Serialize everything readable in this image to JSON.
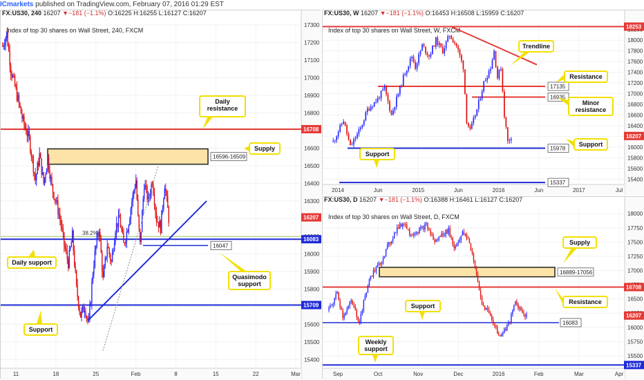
{
  "header": {
    "brand": "ICmarkets",
    "text": " published on TradingView.com, February 07, 2016 01:29 EST"
  },
  "colors": {
    "bull": "#2a2aff",
    "bear": "#e01010",
    "resistance": "#e53935",
    "support": "#1e2bd6",
    "zone_fill": "#fde3a7",
    "callout": "#f2e000",
    "price_tag": "#e53935",
    "fib": "#9ccc65"
  },
  "panels": [
    {
      "id": "h4",
      "ohlc": {
        "symbol": "FX:US30, 240",
        "price": "16207",
        "chg": "▼−181 (−1.1%)",
        "o": "O:16225",
        "h": "H:16255",
        "l": "L:16127",
        "c": "C:16207"
      },
      "title": "Index of top 30 shares on Wall Street, 240, FXCM",
      "y_ticks": [
        "17300",
        "17200",
        "17100",
        "17000",
        "16900",
        "16800",
        "16700",
        "16600",
        "16500",
        "16400",
        "16300",
        "16200",
        "16100",
        "16000",
        "15900",
        "15800",
        "15700",
        "15600",
        "15500",
        "15400"
      ],
      "x_ticks": [
        "11",
        "18",
        "25",
        "Feb",
        "8",
        "15",
        "22",
        "Mar"
      ],
      "price_labels": [
        "16708",
        "16207",
        "16083",
        "15709"
      ],
      "box_label": "16596-16509",
      "line_label": "16047",
      "fib_label": "38.2%",
      "callouts": [
        "Daily resistance",
        "Supply",
        "Daily support",
        "Quasimodo support",
        "Support"
      ]
    },
    {
      "id": "w",
      "ohlc": {
        "symbol": "FX:US30, W",
        "price": "16207",
        "chg": "▼−181 (−1.1%)",
        "o": "O:16453",
        "h": "H:16508",
        "l": "L:15959",
        "c": "C:16207"
      },
      "title": "Index of top 30 shares on Wall Street, W, FXCM",
      "y_ticks": [
        "18200",
        "18000",
        "17800",
        "17600",
        "17400",
        "17200",
        "17000",
        "16800",
        "16600",
        "16400",
        "16200",
        "16000",
        "15800",
        "15600",
        "15400"
      ],
      "x_ticks": [
        "2014",
        "Jun",
        "2015",
        "Jun",
        "2016",
        "Jun",
        "2017",
        "Jul"
      ],
      "price_labels": [
        "18253",
        "16207"
      ],
      "level_labels": [
        "17135",
        "16935",
        "15978",
        "15337"
      ],
      "callouts": [
        "Trendline",
        "Resistance",
        "Minor resistance",
        "Support",
        "Support"
      ]
    },
    {
      "id": "d",
      "ohlc": {
        "symbol": "FX:US30, D",
        "price": "16207",
        "chg": "▼−181 (−1.1%)",
        "o": "O:16388",
        "h": "H:16461",
        "l": "L:16127",
        "c": "C:16207"
      },
      "title": "Index of top 30 shares on Wall Street, D, FXCM",
      "y_ticks": [
        "18000",
        "17750",
        "17500",
        "17250",
        "17000",
        "16750",
        "16500",
        "16250",
        "16000",
        "15750",
        "15500"
      ],
      "x_ticks": [
        "Sep",
        "Oct",
        "Nov",
        "Dec",
        "2016",
        "Feb",
        "Mar",
        "Apr"
      ],
      "price_labels": [
        "16708",
        "16207",
        "15337"
      ],
      "box_label": "16889-17056",
      "line_label": "16083",
      "callouts": [
        "Supply",
        "Resistance",
        "Support",
        "Weekly support"
      ]
    }
  ],
  "chart_data": [
    {
      "type": "candlestick",
      "timeframe": "240",
      "ylim": [
        15350,
        17320
      ],
      "levels": {
        "daily_resistance": 16708,
        "daily_support": 16083,
        "support": 15709,
        "quasimodo_support": 16047,
        "last_price": 16207
      },
      "supply_zone": [
        16509,
        16596
      ],
      "path": [
        [
          0,
          17180
        ],
        [
          4,
          17250
        ],
        [
          8,
          17050
        ],
        [
          14,
          16900
        ],
        [
          20,
          16750
        ],
        [
          26,
          16650
        ],
        [
          32,
          16420
        ],
        [
          36,
          16560
        ],
        [
          40,
          16400
        ],
        [
          44,
          16540
        ],
        [
          48,
          16380
        ],
        [
          52,
          16300
        ],
        [
          56,
          16200
        ],
        [
          60,
          16050
        ],
        [
          64,
          15950
        ],
        [
          68,
          16100
        ],
        [
          72,
          15800
        ],
        [
          76,
          15650
        ],
        [
          80,
          15700
        ],
        [
          84,
          15600
        ],
        [
          88,
          15900
        ],
        [
          90,
          16000
        ],
        [
          94,
          16150
        ],
        [
          98,
          15850
        ],
        [
          102,
          16050
        ],
        [
          106,
          15950
        ],
        [
          110,
          16150
        ],
        [
          114,
          16200
        ],
        [
          118,
          16050
        ],
        [
          122,
          16150
        ],
        [
          126,
          16300
        ],
        [
          130,
          16420
        ],
        [
          132,
          16200
        ],
        [
          134,
          16050
        ],
        [
          138,
          16400
        ],
        [
          142,
          16300
        ],
        [
          146,
          16420
        ],
        [
          150,
          16200
        ],
        [
          154,
          16150
        ],
        [
          158,
          16400
        ],
        [
          162,
          16200
        ]
      ],
      "n": 163
    },
    {
      "type": "candlestick",
      "timeframe": "W",
      "ylim": [
        15300,
        18350
      ],
      "levels": {
        "resistance_high": 18253,
        "resistance": 17135,
        "minor_resistance": 16935,
        "support": 15978,
        "support_low": 15337,
        "last_price": 16207
      },
      "path": [
        [
          0,
          16100
        ],
        [
          6,
          16500
        ],
        [
          10,
          16000
        ],
        [
          16,
          16350
        ],
        [
          20,
          16700
        ],
        [
          26,
          16900
        ],
        [
          30,
          17100
        ],
        [
          34,
          16600
        ],
        [
          38,
          17000
        ],
        [
          42,
          17400
        ],
        [
          46,
          17700
        ],
        [
          48,
          17500
        ],
        [
          52,
          17900
        ],
        [
          56,
          17700
        ],
        [
          60,
          18000
        ],
        [
          64,
          17800
        ],
        [
          68,
          18100
        ],
        [
          72,
          17900
        ],
        [
          74,
          17700
        ],
        [
          76,
          17500
        ],
        [
          78,
          16500
        ],
        [
          80,
          16300
        ],
        [
          84,
          16700
        ],
        [
          88,
          17200
        ],
        [
          92,
          17500
        ],
        [
          94,
          17800
        ],
        [
          96,
          17300
        ],
        [
          98,
          17500
        ],
        [
          100,
          16600
        ],
        [
          102,
          16100
        ],
        [
          104,
          16200
        ]
      ],
      "n": 105
    },
    {
      "type": "candlestick",
      "timeframe": "D",
      "ylim": [
        15280,
        18100
      ],
      "levels": {
        "resistance": 16708,
        "support": 16083,
        "weekly_support": 15337,
        "last_price": 16207
      },
      "supply_zone": [
        16889,
        17056
      ],
      "path": [
        [
          0,
          16300
        ],
        [
          6,
          16600
        ],
        [
          10,
          16200
        ],
        [
          16,
          16450
        ],
        [
          22,
          16100
        ],
        [
          26,
          16550
        ],
        [
          30,
          16900
        ],
        [
          36,
          17100
        ],
        [
          42,
          17400
        ],
        [
          48,
          17700
        ],
        [
          54,
          17850
        ],
        [
          58,
          17650
        ],
        [
          64,
          17700
        ],
        [
          70,
          17800
        ],
        [
          76,
          17500
        ],
        [
          82,
          17650
        ],
        [
          86,
          17700
        ],
        [
          90,
          17400
        ],
        [
          96,
          17650
        ],
        [
          100,
          17550
        ],
        [
          104,
          17200
        ],
        [
          106,
          16900
        ],
        [
          110,
          16400
        ],
        [
          114,
          16300
        ],
        [
          118,
          16100
        ],
        [
          122,
          15850
        ],
        [
          126,
          15950
        ],
        [
          130,
          16100
        ],
        [
          134,
          16450
        ],
        [
          138,
          16300
        ],
        [
          142,
          16200
        ]
      ],
      "n": 143
    }
  ]
}
